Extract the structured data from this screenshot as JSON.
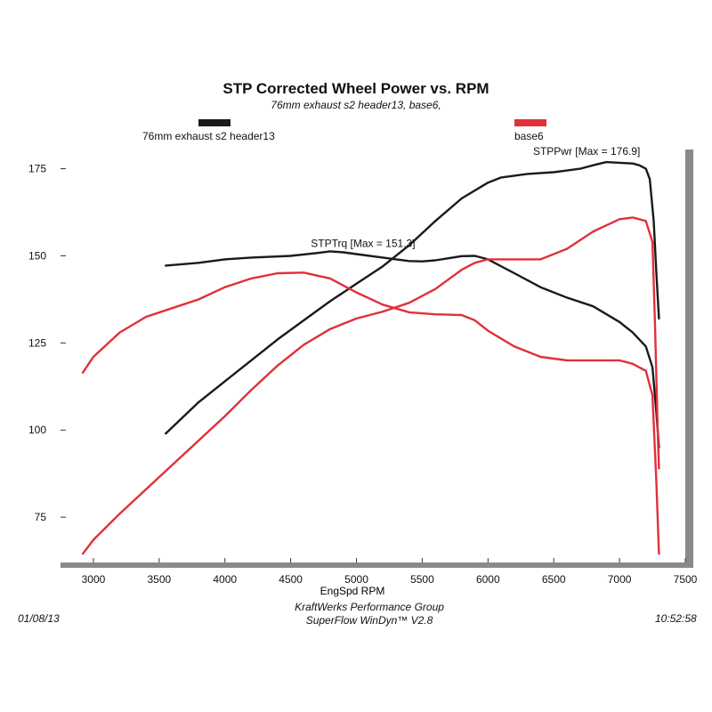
{
  "header": {
    "title": "STP Corrected Wheel Power vs. RPM",
    "subtitle": "76mm exhaust s2 header13, base6,"
  },
  "legend": [
    {
      "name": "76mm exhaust s2 header13",
      "color": "#1a1a1a"
    },
    {
      "name": "base6",
      "color": "#e0303a"
    }
  ],
  "footer": {
    "date": "01/08/13",
    "time": "10:52:58",
    "company": "KraftWerks Performance Group",
    "software": "SuperFlow WinDyn™ V2.8"
  },
  "chart_data": {
    "type": "line",
    "title": "STP Corrected Wheel Power vs. RPM",
    "subtitle": "76mm exhaust s2 header13, base6,",
    "xlabel": "EngSpd  RPM",
    "ylabel": "",
    "xlim": [
      2750,
      7500
    ],
    "ylim": [
      62,
      180
    ],
    "xticks": [
      3000,
      3500,
      4000,
      4500,
      5000,
      5500,
      6000,
      6500,
      7000,
      7500
    ],
    "yticks": [
      75,
      100,
      125,
      150,
      175
    ],
    "grid": false,
    "legend_position": "top",
    "annotations": [
      {
        "text": "STPPwr [Max = 176.9]",
        "x": 6750,
        "y": 179
      },
      {
        "text": "STPTrq [Max = 151.3]",
        "x": 5050,
        "y": 152.5
      }
    ],
    "series": [
      {
        "name": "76mm exhaust s2 header13",
        "measure": "STPPwr",
        "color": "#1a1a1a",
        "x": [
          3550,
          3800,
          4000,
          4200,
          4400,
          4600,
          4800,
          5000,
          5200,
          5400,
          5500,
          5600,
          5800,
          6000,
          6100,
          6300,
          6500,
          6700,
          6800,
          6900,
          7000,
          7100,
          7150,
          7200,
          7230,
          7260,
          7280,
          7300
        ],
        "values": [
          99,
          108,
          114,
          120,
          126,
          131.5,
          137,
          142,
          147,
          153,
          156.5,
          160,
          166.5,
          171,
          172.5,
          173.5,
          174,
          175,
          176,
          176.9,
          176.7,
          176.5,
          176,
          175,
          172,
          160,
          145,
          132
        ]
      },
      {
        "name": "76mm exhaust s2 header13",
        "measure": "STPTrq",
        "color": "#1a1a1a",
        "x": [
          3550,
          3800,
          4000,
          4200,
          4500,
          4700,
          4800,
          4900,
          5000,
          5200,
          5400,
          5500,
          5600,
          5800,
          5900,
          6000,
          6200,
          6400,
          6600,
          6800,
          7000,
          7100,
          7200,
          7250,
          7280,
          7300
        ],
        "values": [
          147.2,
          148,
          149,
          149.5,
          150,
          150.8,
          151.3,
          151,
          150.5,
          149.5,
          148.5,
          148.4,
          148.7,
          149.9,
          150,
          149,
          145,
          141,
          138,
          135.5,
          131,
          128,
          124,
          118,
          105,
          95
        ]
      },
      {
        "name": "base6",
        "measure": "STPPwr",
        "color": "#e0303a",
        "x": [
          2920,
          3000,
          3200,
          3400,
          3600,
          3800,
          4000,
          4200,
          4400,
          4600,
          4800,
          5000,
          5200,
          5400,
          5600,
          5800,
          5900,
          6000,
          6200,
          6400,
          6600,
          6800,
          7000,
          7100,
          7200,
          7250,
          7270,
          7290,
          7300
        ],
        "values": [
          64.5,
          68.5,
          76,
          83,
          90,
          97,
          104,
          111.5,
          118.5,
          124.5,
          129,
          132,
          134,
          136.5,
          140.5,
          146,
          148,
          149,
          149,
          149,
          152,
          157,
          160.5,
          161,
          160,
          154,
          130,
          100,
          89
        ]
      },
      {
        "name": "base6",
        "measure": "STPTrq",
        "color": "#e0303a",
        "x": [
          2920,
          3000,
          3200,
          3400,
          3600,
          3800,
          4000,
          4200,
          4400,
          4600,
          4800,
          5000,
          5200,
          5400,
          5600,
          5800,
          5900,
          6000,
          6200,
          6400,
          6600,
          6800,
          7000,
          7100,
          7200,
          7250,
          7280,
          7300
        ],
        "values": [
          116.5,
          121,
          128,
          132.5,
          135,
          137.5,
          141,
          143.5,
          145,
          145.2,
          143.5,
          139.5,
          136,
          133.8,
          133.2,
          133,
          131.5,
          128.5,
          124,
          121,
          120,
          120,
          120,
          119,
          117,
          110,
          85,
          64.5
        ]
      }
    ]
  }
}
